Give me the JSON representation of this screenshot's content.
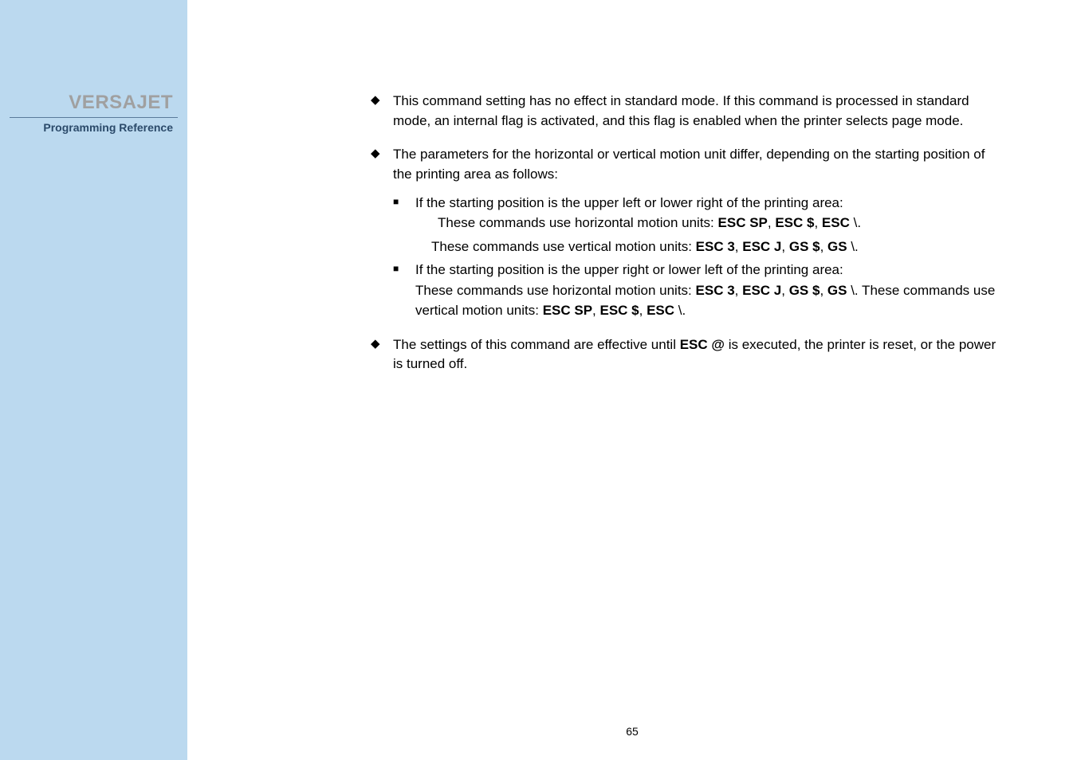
{
  "sidebar": {
    "title": "VERSAJET",
    "subtitle": "Programming Reference"
  },
  "content": {
    "bullets": [
      {
        "text": "This command setting has no effect in standard mode. If this command is processed in standard mode, an internal flag is activated, and this flag is enabled when the printer selects page mode."
      },
      {
        "text": "The parameters for the horizontal or vertical motion unit differ, depending on the starting position of the printing area as follows:",
        "subs": [
          {
            "lead": "If the starting position is the upper left or lower right of the printing area:",
            "lines": [
              {
                "prefix": "These commands use horizontal motion units: ",
                "bolds": [
                  "ESC SP",
                  "ESC $",
                  "ESC"
                ],
                "tail": " \\.",
                "indent": "normal"
              },
              {
                "prefix": "These commands use vertical motion units: ",
                "bolds": [
                  "ESC 3",
                  "ESC J",
                  "GS $",
                  "GS"
                ],
                "tail": " \\.",
                "indent": "less"
              }
            ]
          },
          {
            "lead": "If the starting position is the upper right or lower left of the printing area:",
            "lines": [
              {
                "prefix": "These commands use horizontal motion units: ",
                "bolds": [
                  "ESC 3",
                  "ESC J",
                  "GS $",
                  "GS"
                ],
                "tail": " \\. These commands use vertical motion units: ",
                "bolds2": [
                  "ESC SP",
                  "ESC $",
                  "ESC"
                ],
                "tail2": " \\.",
                "indent": "normal",
                "wrap": true
              }
            ]
          }
        ]
      },
      {
        "html": "The settings of this command are effective until <b>ESC @</b> is executed, the printer is reset, or the power is turned off."
      }
    ]
  },
  "page_number": "65",
  "colors": {
    "sidebar_bg": "#bbd9ef",
    "sidebar_title": "#a0a0a0",
    "sidebar_sub": "#2b4a6a",
    "rule": "#5a7a9a",
    "text": "#000000",
    "bg": "#ffffff"
  }
}
